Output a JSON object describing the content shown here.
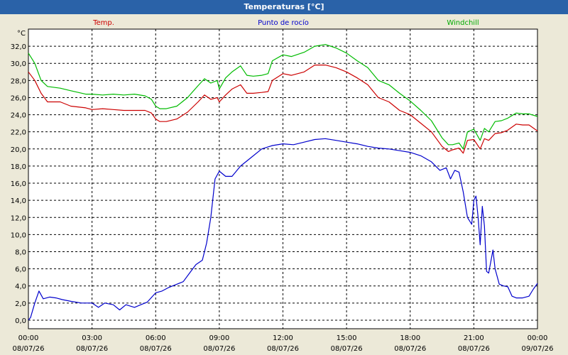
{
  "window": {
    "title": "Temperaturas [°C]"
  },
  "chart_data": {
    "type": "line",
    "unit_label": "°C",
    "ylim": [
      -1,
      34
    ],
    "yticks": [
      "0,0",
      "2,0",
      "4,0",
      "6,0",
      "8,0",
      "10,0",
      "12,0",
      "14,0",
      "16,0",
      "18,0",
      "20,0",
      "22,0",
      "24,0",
      "26,0",
      "28,0",
      "30,0",
      "32,0"
    ],
    "ytick_values": [
      0,
      2,
      4,
      6,
      8,
      10,
      12,
      14,
      16,
      18,
      20,
      22,
      24,
      26,
      28,
      30,
      32
    ],
    "xlim": [
      0,
      24
    ],
    "xticks": [
      {
        "time": "00:00",
        "date": "08/07/26"
      },
      {
        "time": "03:00",
        "date": "08/07/26"
      },
      {
        "time": "06:00",
        "date": "08/07/26"
      },
      {
        "time": "09:00",
        "date": "08/07/26"
      },
      {
        "time": "12:00",
        "date": "08/07/26"
      },
      {
        "time": "15:00",
        "date": "08/07/26"
      },
      {
        "time": "18:00",
        "date": "08/07/26"
      },
      {
        "time": "21:00",
        "date": "08/07/26"
      },
      {
        "time": "00:00",
        "date": "09/07/26"
      }
    ],
    "grid": true,
    "series": [
      {
        "name": "Temp.",
        "color": "#cc0000",
        "x": [
          0,
          0.3,
          0.6,
          0.9,
          1.5,
          2,
          2.7,
          3,
          3.5,
          4,
          4.5,
          5,
          5.5,
          5.8,
          6,
          6.2,
          6.5,
          7,
          7.5,
          8,
          8.3,
          8.6,
          8.9,
          9,
          9.3,
          9.6,
          10,
          10.3,
          10.6,
          11,
          11.3,
          11.5,
          12,
          12.4,
          13,
          13.5,
          14,
          14.5,
          15,
          15.5,
          16,
          16.5,
          17,
          17.5,
          18,
          18.5,
          19,
          19.5,
          19.8,
          20,
          20.3,
          20.5,
          20.7,
          21,
          21.3,
          21.5,
          21.7,
          22,
          22.3,
          22.6,
          23,
          23.3,
          23.6,
          24
        ],
        "y": [
          29,
          28,
          26.5,
          25.5,
          25.5,
          25,
          24.8,
          24.6,
          24.7,
          24.6,
          24.5,
          24.5,
          24.5,
          24.2,
          23.5,
          23.2,
          23.2,
          23.5,
          24.3,
          25.5,
          26.3,
          25.8,
          26,
          25.5,
          26.3,
          27,
          27.5,
          26.5,
          26.5,
          26.6,
          26.7,
          28,
          28.8,
          28.6,
          29,
          29.8,
          29.8,
          29.5,
          29,
          28.3,
          27.5,
          26,
          25.5,
          24.5,
          24,
          23,
          22,
          20.3,
          19.7,
          19.9,
          20.1,
          19.5,
          21,
          21.1,
          20,
          21.2,
          21,
          21.8,
          21.9,
          22.2,
          22.9,
          22.8,
          22.8,
          22.1
        ]
      },
      {
        "name": "Punto de rocío",
        "color": "#0000cc",
        "x": [
          0,
          0.1,
          0.3,
          0.5,
          0.7,
          1,
          1.3,
          1.6,
          2,
          2.5,
          3,
          3.3,
          3.6,
          4,
          4.3,
          4.6,
          5,
          5.3,
          5.6,
          6,
          6.3,
          6.6,
          7,
          7.3,
          7.6,
          7.9,
          8.2,
          8.4,
          8.6,
          8.8,
          9,
          9.3,
          9.6,
          10,
          10.5,
          11,
          11.5,
          12,
          12.5,
          13,
          13.5,
          14,
          14.5,
          15,
          15.5,
          16,
          16.5,
          17,
          17.5,
          18,
          18.5,
          19,
          19.4,
          19.7,
          19.9,
          20.1,
          20.3,
          20.5,
          20.7,
          20.9,
          21,
          21.1,
          21.2,
          21.3,
          21.4,
          21.5,
          21.6,
          21.7,
          21.9,
          22,
          22.2,
          22.4,
          22.6,
          22.8,
          23,
          23.3,
          23.6,
          23.8,
          24
        ],
        "y": [
          0,
          0.3,
          2,
          3.4,
          2.5,
          2.7,
          2.6,
          2.4,
          2.2,
          2,
          2,
          1.5,
          2,
          1.8,
          1.2,
          1.8,
          1.5,
          1.8,
          2.1,
          3.2,
          3.4,
          3.8,
          4.2,
          4.5,
          5.5,
          6.5,
          7,
          9,
          12,
          16.5,
          17.4,
          16.8,
          16.8,
          18,
          19,
          20,
          20.4,
          20.6,
          20.5,
          20.8,
          21.1,
          21.2,
          21,
          20.8,
          20.6,
          20.3,
          20.1,
          20,
          19.8,
          19.6,
          19.2,
          18.5,
          17.5,
          17.8,
          16.5,
          17.5,
          17.3,
          15,
          12,
          11.2,
          14,
          14.5,
          12,
          8.8,
          13.3,
          11,
          5.7,
          5.5,
          8.2,
          6,
          4.2,
          4,
          3.9,
          2.8,
          2.6,
          2.6,
          2.8,
          3.6,
          4.3
        ]
      },
      {
        "name": "Windchill",
        "color": "#00bb00",
        "x": [
          0,
          0.3,
          0.6,
          0.9,
          1.5,
          2,
          2.7,
          3,
          3.5,
          4,
          4.5,
          5,
          5.5,
          5.8,
          6,
          6.2,
          6.5,
          7,
          7.5,
          8,
          8.3,
          8.6,
          8.9,
          9,
          9.3,
          9.6,
          10,
          10.3,
          10.6,
          11,
          11.3,
          11.5,
          12,
          12.4,
          13,
          13.5,
          14,
          14.5,
          15,
          15.5,
          16,
          16.5,
          17,
          17.5,
          18,
          18.5,
          19,
          19.5,
          19.8,
          20,
          20.3,
          20.5,
          20.7,
          21,
          21.3,
          21.5,
          21.7,
          22,
          22.3,
          22.6,
          23,
          23.3,
          23.6,
          24
        ],
        "y": [
          31.2,
          30,
          28,
          27.3,
          27.1,
          26.8,
          26.4,
          26.4,
          26.3,
          26.4,
          26.3,
          26.4,
          26.2,
          25.8,
          25,
          24.7,
          24.7,
          25,
          26,
          27.4,
          28.2,
          27.7,
          28,
          27,
          28.3,
          29,
          29.7,
          28.6,
          28.5,
          28.6,
          28.8,
          30.3,
          31,
          30.8,
          31.3,
          32,
          32.2,
          31.8,
          31.2,
          30.3,
          29.5,
          28,
          27.5,
          26.5,
          25.6,
          24.5,
          23.3,
          21.3,
          20.5,
          20.5,
          20.7,
          20,
          22,
          22.3,
          21,
          22.4,
          22,
          23.2,
          23.3,
          23.6,
          24.2,
          24.1,
          24.1,
          23.8
        ]
      }
    ]
  }
}
